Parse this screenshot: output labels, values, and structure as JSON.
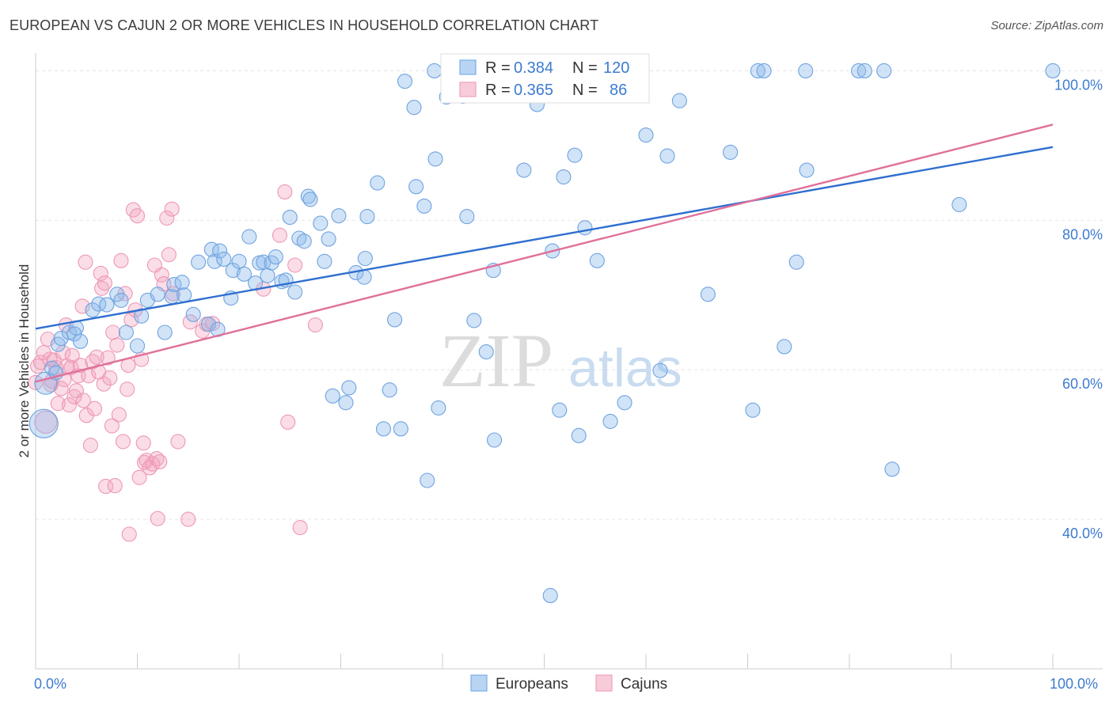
{
  "title": "EUROPEAN VS CAJUN 2 OR MORE VEHICLES IN HOUSEHOLD CORRELATION CHART",
  "source": "Source: ZipAtlas.com",
  "watermark": {
    "zip": "ZIP",
    "atlas": "atlas"
  },
  "colors": {
    "blue": "#7aaee6",
    "pink": "#f0a0bc",
    "blue_line": "#2f6fcf",
    "pink_line": "#e0709a",
    "tick_text": "#3d7bd0"
  },
  "legend": {
    "r_label": "R =",
    "n_label": "N =",
    "rows": [
      {
        "series": "Europeans",
        "r": "0.384",
        "n": "120"
      },
      {
        "series": "Cajuns",
        "r": "0.365",
        "n": "86"
      }
    ]
  },
  "chart_data": {
    "type": "scatter",
    "title": "EUROPEAN VS CAJUN 2 OR MORE VEHICLES IN HOUSEHOLD CORRELATION CHART",
    "xlabel": "",
    "ylabel": "2 or more Vehicles in Household",
    "xlim": [
      0,
      100
    ],
    "ylim": [
      20,
      101
    ],
    "x_tick_labels": [
      "0.0%",
      "100.0%"
    ],
    "y_ticks": [
      40,
      60,
      80,
      100
    ],
    "y_tick_labels": [
      "40.0%",
      "60.0%",
      "80.0%",
      "100.0%"
    ],
    "legend_placement": "bottom",
    "series": [
      {
        "name": "Europeans",
        "color": "#7aaee6",
        "trend": {
          "x": [
            0,
            100
          ],
          "y": [
            65.5,
            89.8
          ]
        },
        "points": [
          [
            0.8,
            52.8
          ],
          [
            1.0,
            58.2
          ],
          [
            1.6,
            60.2
          ],
          [
            2.0,
            59.6
          ],
          [
            2.2,
            63.4
          ],
          [
            2.5,
            64.2
          ],
          [
            3.3,
            65.0
          ],
          [
            4.0,
            65.6
          ],
          [
            3.8,
            64.8
          ],
          [
            4.4,
            63.8
          ],
          [
            5.6,
            68.0
          ],
          [
            6.2,
            68.8
          ],
          [
            7.0,
            68.7
          ],
          [
            8.0,
            70.1
          ],
          [
            8.4,
            69.3
          ],
          [
            8.9,
            65.0
          ],
          [
            10.0,
            63.2
          ],
          [
            10.4,
            67.2
          ],
          [
            11.0,
            69.3
          ],
          [
            12.0,
            70.1
          ],
          [
            12.7,
            65.0
          ],
          [
            13.4,
            69.8
          ],
          [
            13.6,
            71.4
          ],
          [
            14.4,
            71.7
          ],
          [
            14.6,
            70.0
          ],
          [
            15.5,
            67.4
          ],
          [
            16.0,
            74.4
          ],
          [
            17.0,
            66.1
          ],
          [
            17.3,
            76.1
          ],
          [
            17.9,
            65.4
          ],
          [
            17.6,
            74.5
          ],
          [
            18.1,
            75.9
          ],
          [
            18.5,
            74.8
          ],
          [
            19.2,
            69.6
          ],
          [
            19.4,
            73.3
          ],
          [
            20.0,
            74.5
          ],
          [
            20.5,
            72.8
          ],
          [
            21.0,
            77.8
          ],
          [
            21.6,
            71.6
          ],
          [
            22.0,
            74.3
          ],
          [
            22.4,
            74.4
          ],
          [
            22.8,
            72.6
          ],
          [
            23.2,
            74.3
          ],
          [
            23.6,
            75.1
          ],
          [
            24.2,
            71.8
          ],
          [
            24.6,
            72.0
          ],
          [
            25.0,
            80.4
          ],
          [
            25.5,
            70.4
          ],
          [
            25.9,
            77.6
          ],
          [
            26.4,
            77.2
          ],
          [
            26.8,
            83.2
          ],
          [
            27.0,
            82.8
          ],
          [
            28.0,
            79.6
          ],
          [
            28.4,
            74.5
          ],
          [
            28.8,
            77.5
          ],
          [
            29.2,
            56.5
          ],
          [
            29.8,
            80.6
          ],
          [
            30.5,
            55.6
          ],
          [
            30.8,
            57.6
          ],
          [
            31.5,
            73.0
          ],
          [
            32.3,
            72.4
          ],
          [
            32.4,
            74.9
          ],
          [
            32.6,
            80.5
          ],
          [
            33.6,
            85.0
          ],
          [
            34.2,
            52.1
          ],
          [
            34.8,
            57.3
          ],
          [
            35.3,
            66.7
          ],
          [
            35.9,
            52.1
          ],
          [
            36.3,
            98.6
          ],
          [
            37.2,
            95.1
          ],
          [
            37.4,
            84.5
          ],
          [
            38.2,
            81.9
          ],
          [
            38.5,
            45.2
          ],
          [
            39.2,
            100.0
          ],
          [
            39.3,
            88.2
          ],
          [
            39.6,
            54.9
          ],
          [
            40.4,
            96.5
          ],
          [
            41.0,
            100.0
          ],
          [
            42.0,
            96.6
          ],
          [
            42.4,
            80.5
          ],
          [
            43.1,
            66.6
          ],
          [
            44.3,
            62.4
          ],
          [
            45.0,
            73.3
          ],
          [
            45.1,
            50.6
          ],
          [
            46.8,
            100.0
          ],
          [
            48.0,
            86.7
          ],
          [
            48.8,
            98.8
          ],
          [
            49.3,
            95.5
          ],
          [
            50.0,
            100.0
          ],
          [
            50.3,
            96.8
          ],
          [
            50.6,
            29.8
          ],
          [
            50.8,
            75.9
          ],
          [
            51.5,
            54.6
          ],
          [
            51.9,
            85.8
          ],
          [
            53.0,
            88.7
          ],
          [
            53.4,
            51.2
          ],
          [
            54.0,
            79.0
          ],
          [
            55.2,
            74.6
          ],
          [
            56.5,
            53.1
          ],
          [
            57.9,
            55.6
          ],
          [
            57.8,
            96.7
          ],
          [
            60.0,
            91.4
          ],
          [
            61.4,
            59.9
          ],
          [
            62.1,
            88.6
          ],
          [
            63.3,
            96.0
          ],
          [
            66.1,
            70.1
          ],
          [
            68.3,
            89.1
          ],
          [
            70.5,
            54.6
          ],
          [
            71.0,
            100.0
          ],
          [
            71.6,
            100.0
          ],
          [
            73.6,
            63.1
          ],
          [
            74.8,
            74.4
          ],
          [
            75.7,
            100.0
          ],
          [
            75.8,
            86.7
          ],
          [
            80.9,
            100.0
          ],
          [
            81.5,
            100.0
          ],
          [
            83.4,
            100.0
          ],
          [
            84.2,
            46.7
          ],
          [
            90.8,
            82.1
          ],
          [
            100.0,
            100.0
          ]
        ]
      },
      {
        "name": "Cajuns",
        "color": "#f0a0bc",
        "trend": {
          "x": [
            0,
            100
          ],
          "y": [
            58.4,
            92.8
          ]
        },
        "points": [
          [
            0.0,
            58.3
          ],
          [
            0.2,
            60.5
          ],
          [
            0.5,
            61.0
          ],
          [
            0.8,
            62.3
          ],
          [
            1.0,
            53.0
          ],
          [
            1.2,
            64.1
          ],
          [
            1.4,
            61.4
          ],
          [
            1.6,
            58.5
          ],
          [
            1.8,
            61.3
          ],
          [
            2.2,
            55.5
          ],
          [
            2.5,
            57.5
          ],
          [
            2.7,
            62.3
          ],
          [
            2.8,
            58.7
          ],
          [
            3.0,
            66.0
          ],
          [
            3.1,
            60.5
          ],
          [
            3.3,
            55.3
          ],
          [
            3.5,
            60.3
          ],
          [
            3.6,
            61.9
          ],
          [
            3.8,
            56.4
          ],
          [
            4.0,
            57.2
          ],
          [
            4.2,
            59.2
          ],
          [
            4.4,
            60.6
          ],
          [
            4.6,
            68.5
          ],
          [
            4.7,
            55.9
          ],
          [
            4.9,
            74.4
          ],
          [
            5.0,
            53.9
          ],
          [
            5.2,
            59.2
          ],
          [
            5.4,
            49.9
          ],
          [
            5.6,
            61.1
          ],
          [
            5.8,
            54.8
          ],
          [
            6.0,
            61.7
          ],
          [
            6.2,
            59.7
          ],
          [
            6.4,
            72.9
          ],
          [
            6.5,
            70.9
          ],
          [
            6.7,
            58.1
          ],
          [
            6.8,
            71.6
          ],
          [
            6.9,
            44.4
          ],
          [
            7.1,
            61.6
          ],
          [
            7.3,
            58.9
          ],
          [
            7.5,
            52.5
          ],
          [
            7.6,
            65.0
          ],
          [
            7.8,
            44.5
          ],
          [
            8.0,
            63.3
          ],
          [
            8.2,
            54.0
          ],
          [
            8.4,
            74.6
          ],
          [
            8.6,
            50.4
          ],
          [
            8.8,
            70.2
          ],
          [
            9.0,
            57.4
          ],
          [
            9.1,
            60.6
          ],
          [
            9.2,
            38.0
          ],
          [
            9.4,
            66.7
          ],
          [
            9.6,
            81.4
          ],
          [
            9.8,
            68.0
          ],
          [
            10.0,
            80.6
          ],
          [
            10.2,
            45.6
          ],
          [
            10.4,
            61.4
          ],
          [
            10.6,
            50.2
          ],
          [
            10.7,
            47.6
          ],
          [
            10.9,
            47.9
          ],
          [
            11.2,
            46.9
          ],
          [
            11.5,
            47.4
          ],
          [
            11.7,
            74.0
          ],
          [
            11.9,
            48.1
          ],
          [
            12.0,
            40.1
          ],
          [
            12.2,
            47.7
          ],
          [
            12.4,
            72.7
          ],
          [
            12.6,
            71.5
          ],
          [
            12.9,
            80.3
          ],
          [
            13.1,
            75.4
          ],
          [
            13.4,
            81.5
          ],
          [
            13.5,
            70.2
          ],
          [
            14.0,
            50.4
          ],
          [
            15.0,
            40.0
          ],
          [
            15.2,
            66.4
          ],
          [
            16.4,
            65.2
          ],
          [
            16.8,
            66.1
          ],
          [
            17.4,
            66.2
          ],
          [
            22.4,
            70.8
          ],
          [
            24.0,
            78.0
          ],
          [
            24.5,
            83.8
          ],
          [
            24.8,
            53.0
          ],
          [
            25.5,
            74.0
          ],
          [
            26.0,
            38.9
          ],
          [
            27.5,
            66.0
          ],
          [
            2.0,
            60.3
          ],
          [
            1.5,
            58.0
          ]
        ]
      }
    ]
  },
  "bottom_legend": [
    "Europeans",
    "Cajuns"
  ]
}
